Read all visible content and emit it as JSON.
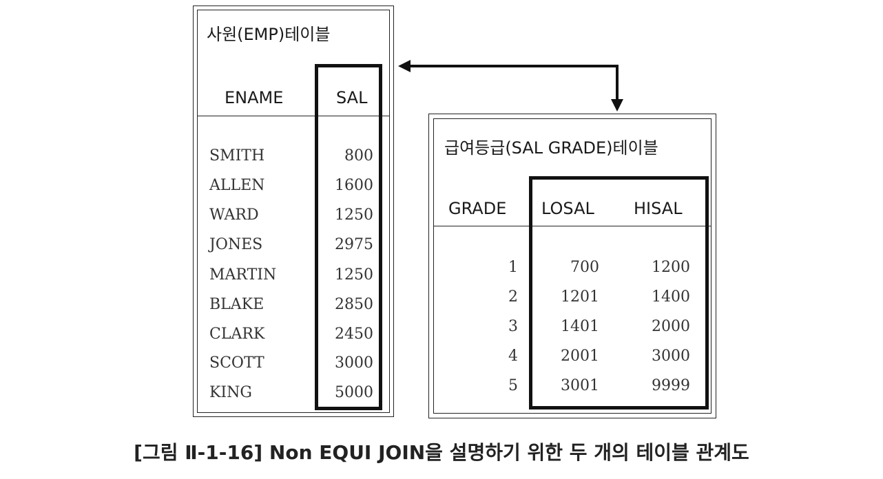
{
  "emp_table": {
    "title": "사원(EMP)테이블",
    "columns": [
      "ENAME",
      "SAL"
    ],
    "rows": [
      {
        "ename": "SMITH",
        "sal": "800"
      },
      {
        "ename": "ALLEN",
        "sal": "1600"
      },
      {
        "ename": "WARD",
        "sal": "1250"
      },
      {
        "ename": "JONES",
        "sal": "2975"
      },
      {
        "ename": "MARTIN",
        "sal": "1250"
      },
      {
        "ename": "BLAKE",
        "sal": "2850"
      },
      {
        "ename": "CLARK",
        "sal": "2450"
      },
      {
        "ename": "SCOTT",
        "sal": "3000"
      },
      {
        "ename": "KING",
        "sal": "5000"
      }
    ]
  },
  "salgrade_table": {
    "title": "급여등급(SAL GRADE)테이블",
    "columns": [
      "GRADE",
      "LOSAL",
      "HISAL"
    ],
    "rows": [
      {
        "grade": "1",
        "losal": "700",
        "hisal": "1200"
      },
      {
        "grade": "2",
        "losal": "1201",
        "hisal": "1400"
      },
      {
        "grade": "3",
        "losal": "1401",
        "hisal": "2000"
      },
      {
        "grade": "4",
        "losal": "2001",
        "hisal": "3000"
      },
      {
        "grade": "5",
        "losal": "3001",
        "hisal": "9999"
      }
    ]
  },
  "caption": "[그림 Ⅱ-1-16] Non EQUI JOIN을 설명하기 위한 두 개의 테이블 관계도",
  "colors": {
    "line": "#111111",
    "text": "#333333"
  }
}
